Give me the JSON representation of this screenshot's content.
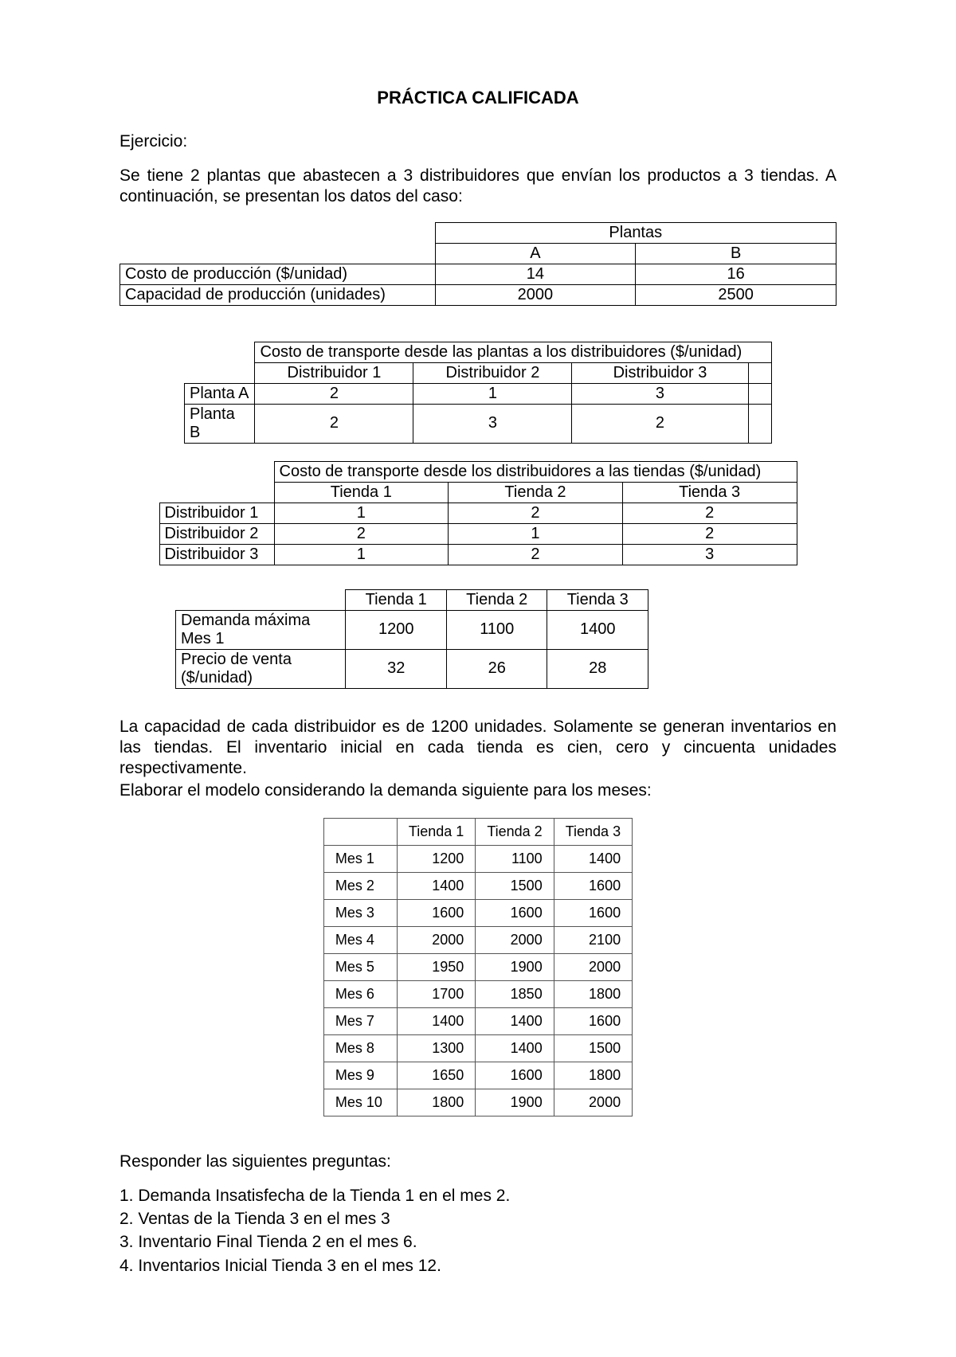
{
  "title": "PRÁCTICA CALIFICADA",
  "exerciseLabel": "Ejercicio:",
  "intro": "Se tiene 2 plantas que abastecen a 3 distribuidores que envían los productos a 3 tiendas. A continuación, se presentan los datos del caso:",
  "plantsTable": {
    "header": "Plantas",
    "cols": [
      "A",
      "B"
    ],
    "rows": [
      {
        "label": "Costo de producción ($/unidad)",
        "values": [
          "14",
          "16"
        ]
      },
      {
        "label": "Capacidad de producción (unidades)",
        "values": [
          "2000",
          "2500"
        ]
      }
    ]
  },
  "transport1": {
    "header": "Costo de transporte desde las plantas a los distribuidores ($/unidad)",
    "cols": [
      "Distribuidor 1",
      "Distribuidor 2",
      "Distribuidor 3"
    ],
    "rows": [
      {
        "label": "Planta A",
        "values": [
          "2",
          "1",
          "3"
        ]
      },
      {
        "label": "Planta B",
        "values": [
          "2",
          "3",
          "2"
        ]
      }
    ]
  },
  "transport2": {
    "header": "Costo de transporte desde los distribuidores a las tiendas ($/unidad)",
    "cols": [
      "Tienda 1",
      "Tienda 2",
      "Tienda 3"
    ],
    "rows": [
      {
        "label": "Distribuidor 1",
        "values": [
          "1",
          "2",
          "2"
        ]
      },
      {
        "label": "Distribuidor 2",
        "values": [
          "2",
          "1",
          "2"
        ]
      },
      {
        "label": "Distribuidor 3",
        "values": [
          "1",
          "2",
          "3"
        ]
      }
    ]
  },
  "demandTable": {
    "cols": [
      "Tienda 1",
      "Tienda 2",
      "Tienda 3"
    ],
    "rows": [
      {
        "label": "Demanda máxima Mes 1",
        "values": [
          "1200",
          "1100",
          "1400"
        ]
      },
      {
        "label": "Precio de venta ($/unidad)",
        "values": [
          "32",
          "26",
          "28"
        ]
      }
    ]
  },
  "para2a": "La capacidad de cada distribuidor es de 1200 unidades. Solamente se generan inventarios en las tiendas. El inventario inicial en cada tienda es cien, cero y cincuenta unidades respectivamente.",
  "para2b": "Elaborar el modelo considerando la demanda siguiente para los meses:",
  "monthsTable": {
    "cols": [
      "",
      "Tienda 1",
      "Tienda 2",
      "Tienda 3"
    ],
    "rows": [
      {
        "label": "Mes 1",
        "values": [
          "1200",
          "1100",
          "1400"
        ]
      },
      {
        "label": "Mes 2",
        "values": [
          "1400",
          "1500",
          "1600"
        ]
      },
      {
        "label": "Mes 3",
        "values": [
          "1600",
          "1600",
          "1600"
        ]
      },
      {
        "label": "Mes 4",
        "values": [
          "2000",
          "2000",
          "2100"
        ]
      },
      {
        "label": "Mes 5",
        "values": [
          "1950",
          "1900",
          "2000"
        ]
      },
      {
        "label": "Mes 6",
        "values": [
          "1700",
          "1850",
          "1800"
        ]
      },
      {
        "label": "Mes 7",
        "values": [
          "1400",
          "1400",
          "1600"
        ]
      },
      {
        "label": "Mes 8",
        "values": [
          "1300",
          "1400",
          "1500"
        ]
      },
      {
        "label": "Mes 9",
        "values": [
          "1650",
          "1600",
          "1800"
        ]
      },
      {
        "label": "Mes 10",
        "values": [
          "1800",
          "1900",
          "2000"
        ]
      }
    ]
  },
  "questionsIntro": "Responder las siguientes preguntas:",
  "questions": [
    "1. Demanda Insatisfecha de la Tienda 1 en el mes 2.",
    "2. Ventas de la Tienda 3 en el mes 3",
    "3. Inventario Final Tienda 2 en el mes 6.",
    "4. Inventarios Inicial Tienda 3 en el mes 12."
  ]
}
